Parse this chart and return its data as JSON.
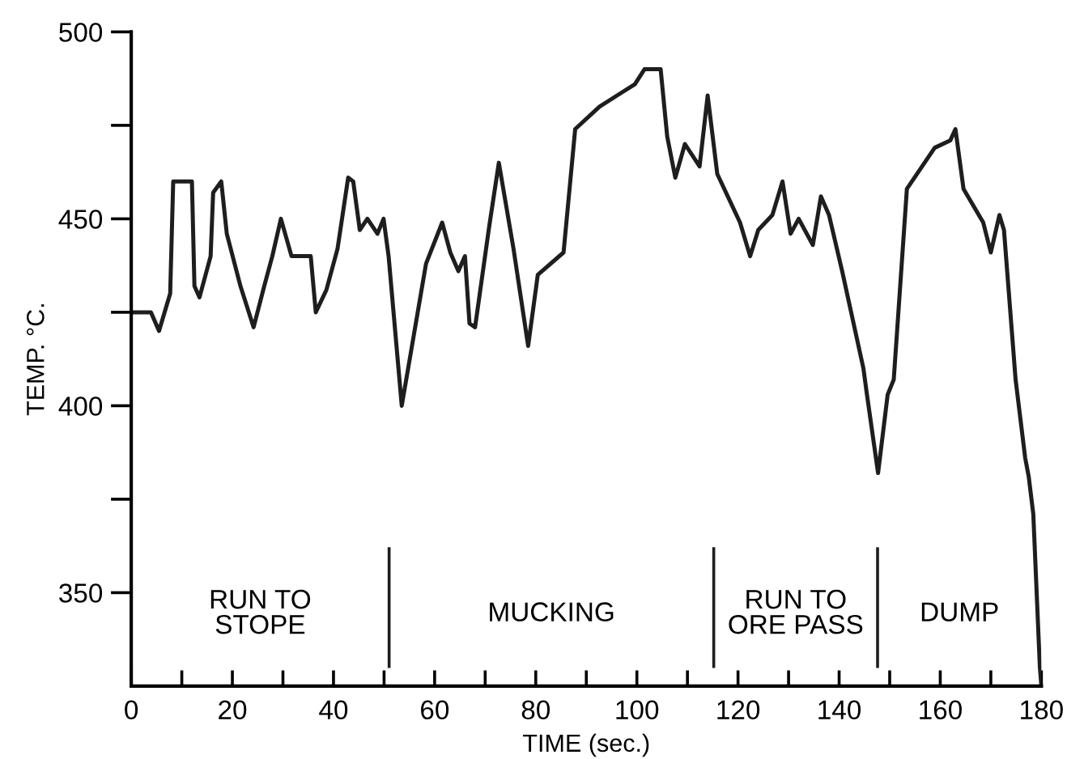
{
  "chart_data": {
    "type": "line",
    "xlabel": "TIME (sec.)",
    "ylabel": "TEMP. °C.",
    "xlim": [
      0,
      180
    ],
    "ylim": [
      325,
      500
    ],
    "xticks": [
      0,
      {
        "value": 10,
        "label": null
      },
      20,
      {
        "value": 30,
        "label": null
      },
      40,
      {
        "value": 50,
        "label": null
      },
      60,
      {
        "value": 70,
        "label": null
      },
      80,
      {
        "value": 90,
        "label": null
      },
      100,
      {
        "value": 110,
        "label": null
      },
      120,
      {
        "value": 130,
        "label": null
      },
      140,
      {
        "value": 150,
        "label": null
      },
      160,
      {
        "value": 170,
        "label": null
      },
      180
    ],
    "yticks": [
      350,
      {
        "value": 375,
        "label": null
      },
      400,
      {
        "value": 425,
        "label": null
      },
      450,
      {
        "value": 475,
        "label": null
      },
      500
    ],
    "grid": false,
    "legend": false,
    "marker": "none",
    "line_style": "solid",
    "series": [
      {
        "color": "#1e1e1e",
        "x": [
          0,
          3.9,
          5.5,
          7.7,
          8.3,
          12,
          12.5,
          13.5,
          15.7,
          16.2,
          17.8,
          18.9,
          21.6,
          24.2,
          26.3,
          27.9,
          29.6,
          31.7,
          35.5,
          36.5,
          38.6,
          40.8,
          42.9,
          43.9,
          45.2,
          46.7,
          48.7,
          49.9,
          50.9,
          53.5,
          58.3,
          61.5,
          63.1,
          64.7,
          66,
          66.9,
          68,
          70.8,
          72.7,
          75.6,
          78.5,
          80.4,
          85.5,
          87.8,
          92.6,
          99.6,
          101.5,
          104.7,
          106,
          107.6,
          109.5,
          112.4,
          114,
          115.9,
          120.4,
          122.4,
          124,
          126.8,
          128.8,
          130.4,
          132,
          134.8,
          136.4,
          138,
          140.6,
          144.8,
          145.5,
          147.7,
          149.6,
          150.8,
          153.4,
          158.9,
          162,
          163,
          164.6,
          168.5,
          170,
          171.7,
          172.6,
          174.9,
          176.8,
          177.5,
          178.4,
          179.7,
          180
        ],
        "values": [
          425,
          425,
          420,
          430,
          460,
          460,
          432,
          429,
          440,
          457,
          460,
          446,
          432,
          421,
          432,
          440,
          450,
          440,
          440,
          425,
          431,
          442,
          461,
          460,
          447,
          450,
          446,
          450,
          440,
          400,
          438,
          449,
          441,
          436,
          440,
          422,
          421,
          448,
          465,
          442,
          416,
          435,
          441,
          474,
          480,
          486,
          490,
          490,
          472,
          461,
          470,
          464,
          483,
          462,
          449,
          440,
          447,
          451,
          460,
          446,
          450,
          443,
          456,
          451,
          436,
          410,
          403,
          382,
          403,
          407,
          458,
          469,
          471,
          474,
          458,
          449,
          441,
          451,
          447,
          407,
          386,
          381,
          371,
          330,
          325
        ]
      }
    ],
    "ref_lines": [
      {
        "axis": "x",
        "value": 51,
        "color": "#1e1e1e"
      },
      {
        "axis": "x",
        "value": 115.2,
        "color": "#1e1e1e"
      },
      {
        "axis": "x",
        "value": 147.6,
        "color": "#1e1e1e"
      }
    ],
    "annotations": [
      "RUN TO\nSTOPE",
      "MUCKING",
      "RUN TO\nORE PASS",
      "DUMP"
    ]
  }
}
